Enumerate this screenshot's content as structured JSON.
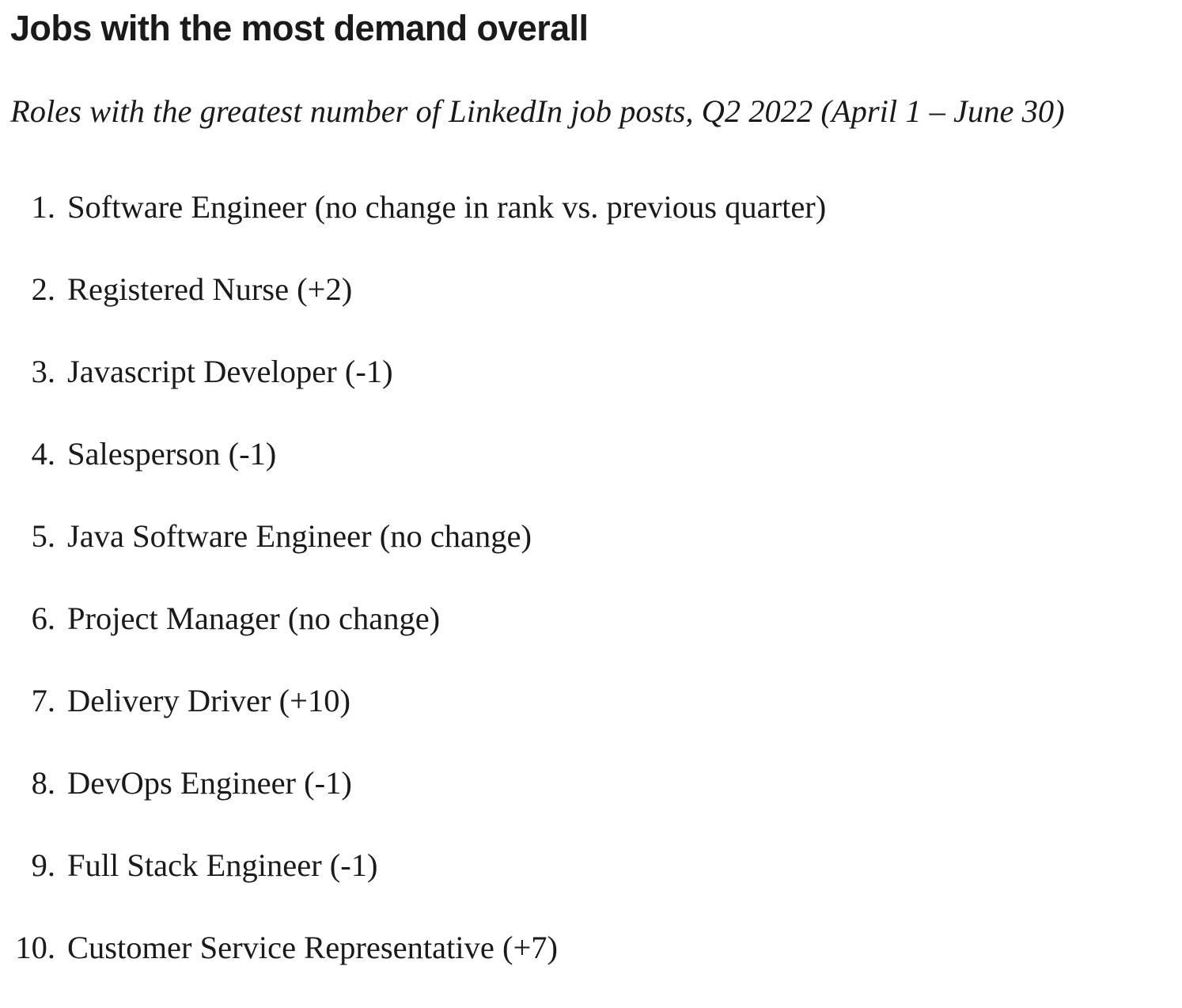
{
  "article": {
    "heading": "Jobs with the most demand overall",
    "subtitle": "Roles with the greatest number of LinkedIn job posts, Q2 2022 (April 1 – June 30)",
    "jobs": [
      {
        "rank": "1.",
        "text": "Software Engineer (no change in rank vs. previous quarter)"
      },
      {
        "rank": "2.",
        "text": "Registered Nurse (+2)"
      },
      {
        "rank": "3.",
        "text": "Javascript Developer (-1)"
      },
      {
        "rank": "4.",
        "text": "Salesperson (-1)"
      },
      {
        "rank": "5.",
        "text": "Java Software Engineer (no change)"
      },
      {
        "rank": "6.",
        "text": "Project Manager (no change)"
      },
      {
        "rank": "7.",
        "text": "Delivery Driver (+10)"
      },
      {
        "rank": "8.",
        "text": "DevOps Engineer (-1)"
      },
      {
        "rank": "9.",
        "text": "Full Stack Engineer (-1)"
      },
      {
        "rank": "10.",
        "text": "Customer Service Representative (+7)"
      }
    ]
  }
}
